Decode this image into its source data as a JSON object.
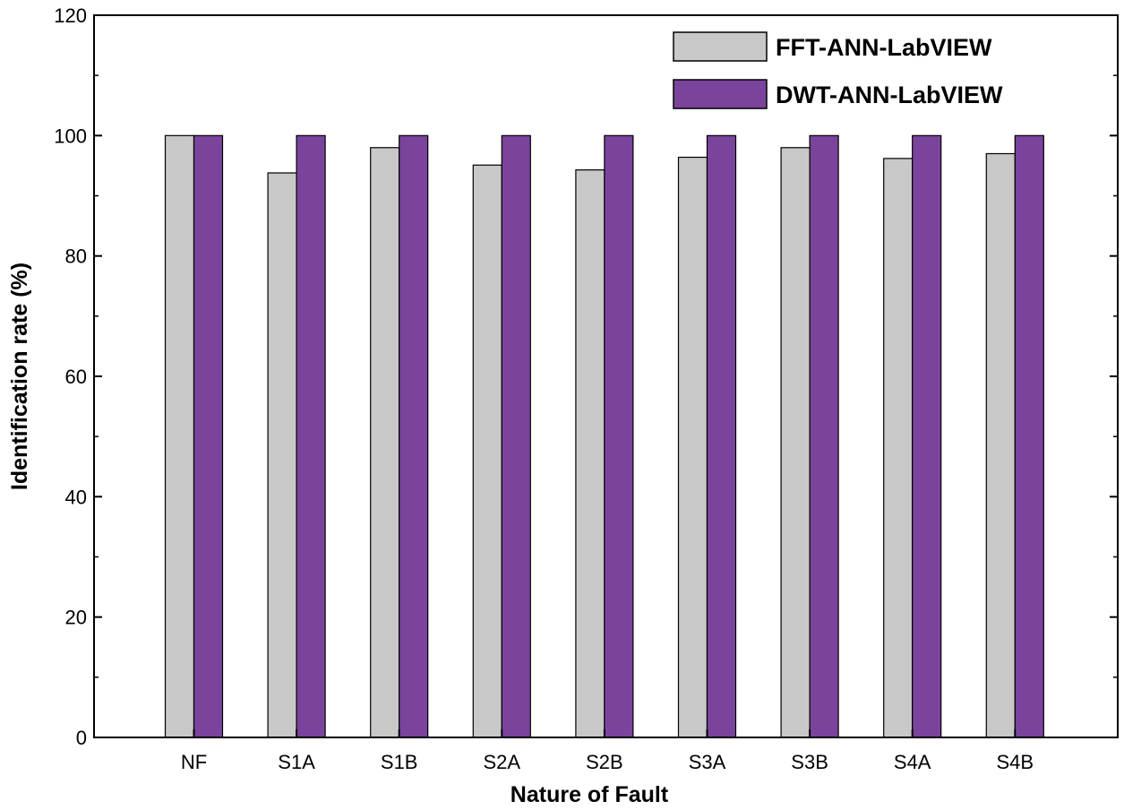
{
  "chart_data": {
    "type": "bar",
    "title": "",
    "xlabel": "Nature of Fault",
    "ylabel": "Identification rate (%)",
    "ylim": [
      0,
      120
    ],
    "yticks": [
      0,
      20,
      40,
      60,
      80,
      100,
      120
    ],
    "grid": false,
    "legend_position": "top-right",
    "categories": [
      "NF",
      "S1A",
      "S1B",
      "S2A",
      "S2B",
      "S3A",
      "S3B",
      "S4A",
      "S4B"
    ],
    "series": [
      {
        "name": "FFT-ANN-LabVIEW",
        "color": "#c8c8c8",
        "values": [
          100,
          93.8,
          98.0,
          95.1,
          94.3,
          96.4,
          98.0,
          96.2,
          97.0
        ]
      },
      {
        "name": "DWT-ANN-LabVIEW",
        "color": "#7a449c",
        "values": [
          100,
          100,
          100,
          100,
          100,
          100,
          100,
          100,
          100
        ]
      }
    ]
  }
}
